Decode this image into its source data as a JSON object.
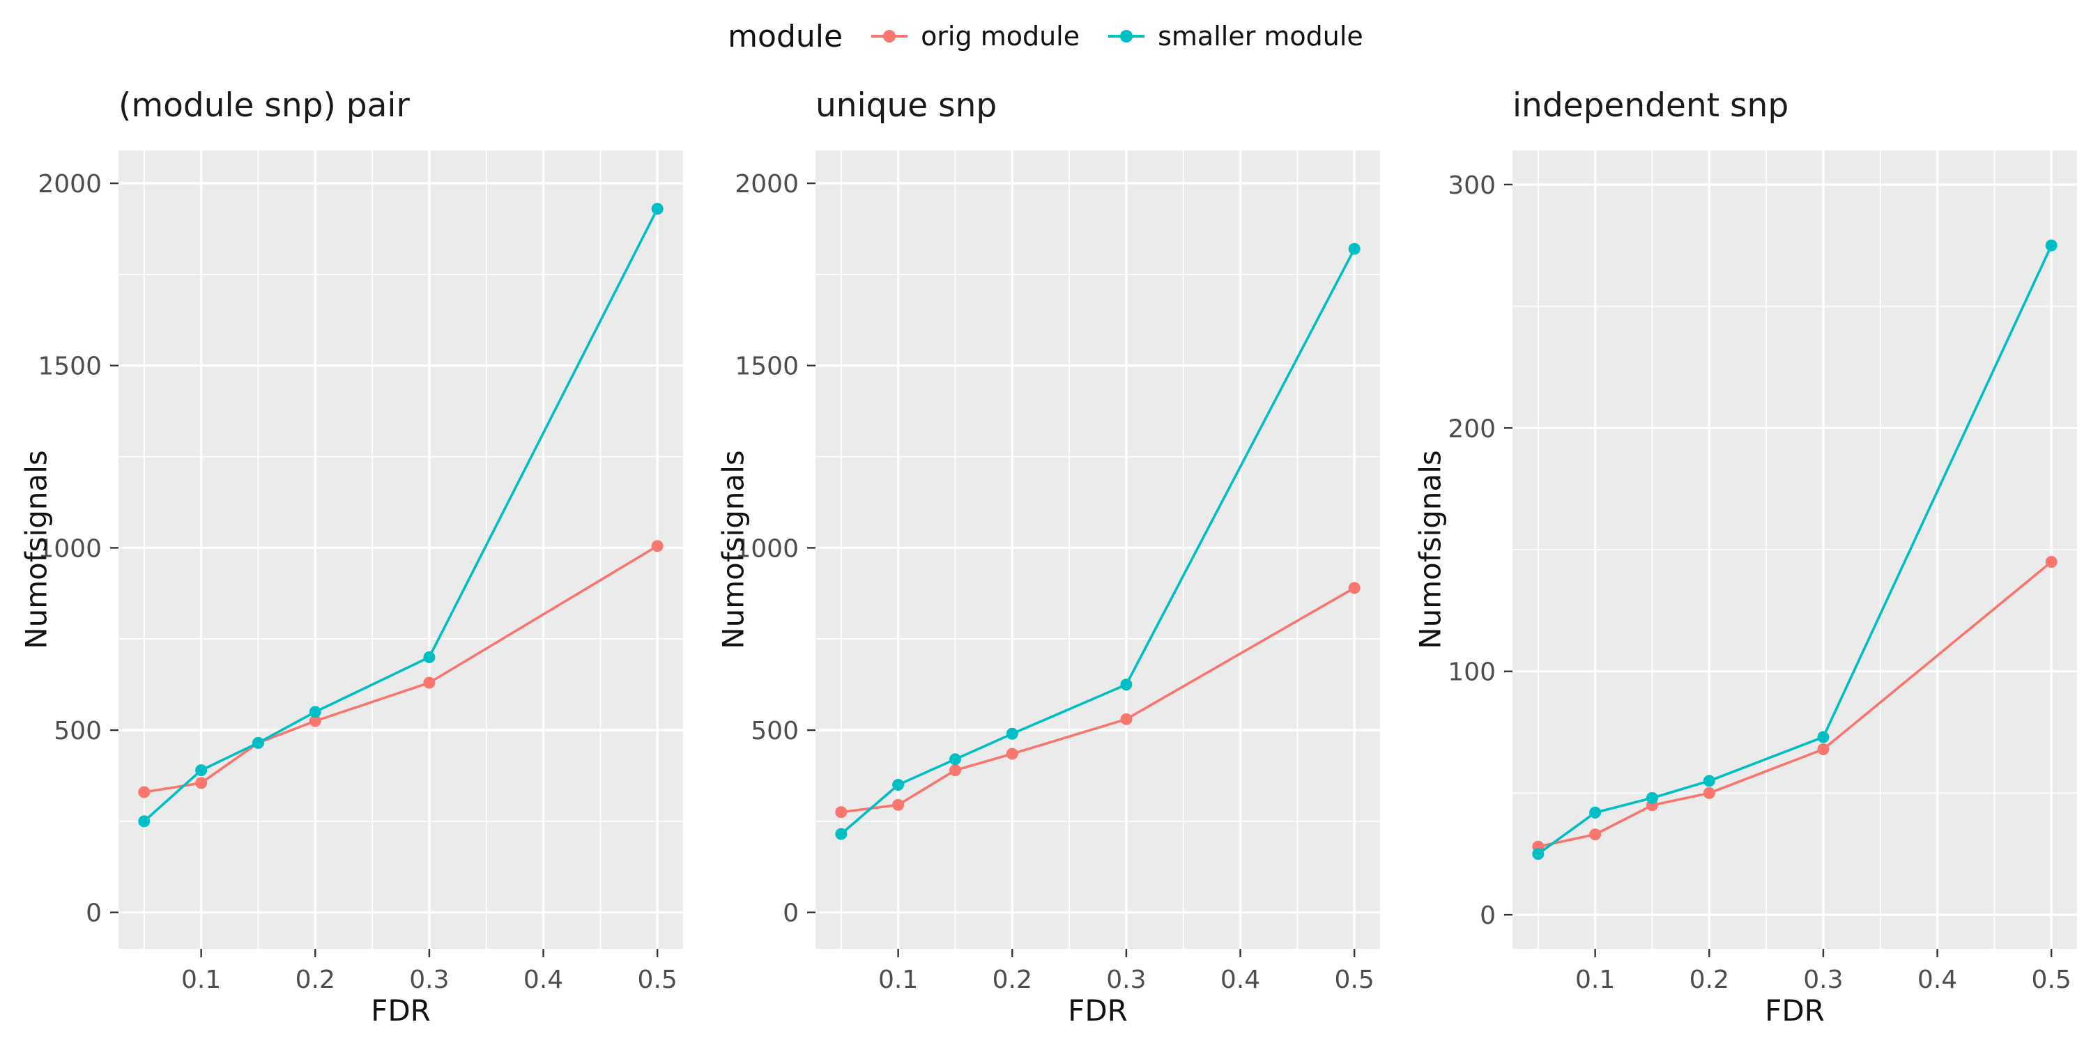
{
  "legend": {
    "title": "module",
    "entries": [
      {
        "label": "orig module",
        "color": "#F8766D"
      },
      {
        "label": "smaller module",
        "color": "#00BFC4"
      }
    ]
  },
  "style": {
    "panel_background": "#EBEBEB",
    "gridline_color": "#FFFFFF",
    "tick_label_color": "#4D4D4D",
    "tick_mark_color": "#333333"
  },
  "chart_data": [
    {
      "type": "line",
      "title": "(module snp) pair",
      "xlabel": "FDR",
      "ylabel": "Numofsignals",
      "x": [
        0.05,
        0.1,
        0.15,
        0.2,
        0.3,
        0.5
      ],
      "series": [
        {
          "name": "orig module",
          "color": "#F8766D",
          "values": [
            330,
            355,
            465,
            525,
            630,
            1005
          ]
        },
        {
          "name": "smaller module",
          "color": "#00BFC4",
          "values": [
            250,
            390,
            465,
            550,
            700,
            1930
          ]
        }
      ],
      "xlim": [
        0.0275,
        0.5225
      ],
      "ylim": [
        -100,
        2090
      ],
      "xticks": [
        0.1,
        0.2,
        0.3,
        0.4,
        0.5
      ],
      "xminor": [
        0.05,
        0.15,
        0.25,
        0.35,
        0.45
      ],
      "yticks": [
        0,
        500,
        1000,
        1500,
        2000
      ],
      "yminor": [
        250,
        750,
        1250,
        1750
      ],
      "grid": "on",
      "legend_position": "top"
    },
    {
      "type": "line",
      "title": "unique snp",
      "xlabel": "FDR",
      "ylabel": "Numofsignals",
      "x": [
        0.05,
        0.1,
        0.15,
        0.2,
        0.3,
        0.5
      ],
      "series": [
        {
          "name": "orig module",
          "color": "#F8766D",
          "values": [
            275,
            295,
            390,
            435,
            530,
            890
          ]
        },
        {
          "name": "smaller module",
          "color": "#00BFC4",
          "values": [
            215,
            350,
            420,
            490,
            625,
            1820
          ]
        }
      ],
      "xlim": [
        0.0275,
        0.5225
      ],
      "ylim": [
        -100,
        2090
      ],
      "xticks": [
        0.1,
        0.2,
        0.3,
        0.4,
        0.5
      ],
      "xminor": [
        0.05,
        0.15,
        0.25,
        0.35,
        0.45
      ],
      "yticks": [
        0,
        500,
        1000,
        1500,
        2000
      ],
      "yminor": [
        250,
        750,
        1250,
        1750
      ],
      "grid": "on",
      "legend_position": "top"
    },
    {
      "type": "line",
      "title": "independent snp",
      "xlabel": "FDR",
      "ylabel": "Numofsignals",
      "x": [
        0.05,
        0.1,
        0.15,
        0.2,
        0.3,
        0.5
      ],
      "series": [
        {
          "name": "orig module",
          "color": "#F8766D",
          "values": [
            28,
            33,
            45,
            50,
            68,
            145
          ]
        },
        {
          "name": "smaller module",
          "color": "#00BFC4",
          "values": [
            25,
            42,
            48,
            55,
            73,
            275
          ]
        }
      ],
      "xlim": [
        0.0275,
        0.5225
      ],
      "ylim": [
        -14,
        314
      ],
      "xticks": [
        0.1,
        0.2,
        0.3,
        0.4,
        0.5
      ],
      "xminor": [
        0.05,
        0.15,
        0.25,
        0.35,
        0.45
      ],
      "yticks": [
        0,
        100,
        200,
        300
      ],
      "yminor": [
        50,
        150,
        250
      ],
      "grid": "on",
      "legend_position": "top"
    }
  ]
}
